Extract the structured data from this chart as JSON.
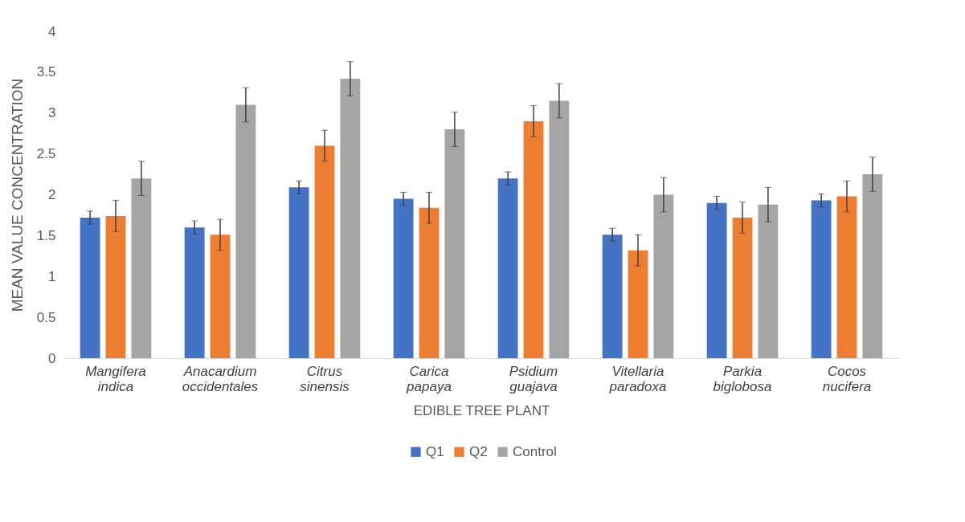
{
  "chart_data": {
    "type": "bar",
    "xlabel": "EDIBLE TREE PLANT",
    "ylabel": "MEAN VALUE CONCENTRATION",
    "categories": [
      "Mangifera indica",
      "Anacardium occidentales",
      "Citrus sinensis",
      "Carica papaya",
      "Psidium guajava",
      "Vitellaria paradoxa",
      "Parkia biglobosa",
      "Cocos nucifera"
    ],
    "series": [
      {
        "name": "Q1",
        "color": "#4472c4",
        "values": [
          1.72,
          1.6,
          2.09,
          1.95,
          2.2,
          1.51,
          1.9,
          1.93
        ],
        "errors": [
          0.08,
          0.08,
          0.08,
          0.08,
          0.08,
          0.08,
          0.08,
          0.08
        ]
      },
      {
        "name": "Q2",
        "color": "#ed7d31",
        "values": [
          1.74,
          1.51,
          2.6,
          1.84,
          2.9,
          1.32,
          1.72,
          1.98
        ],
        "errors": [
          0.19,
          0.19,
          0.19,
          0.19,
          0.19,
          0.19,
          0.19,
          0.19
        ]
      },
      {
        "name": "Control",
        "color": "#a5a5a5",
        "values": [
          2.2,
          3.1,
          3.42,
          2.8,
          3.15,
          2.0,
          1.88,
          2.25
        ],
        "errors": [
          0.21,
          0.21,
          0.21,
          0.21,
          0.21,
          0.21,
          0.21,
          0.21
        ]
      }
    ],
    "ylim": [
      0,
      4
    ],
    "yticks": [
      0,
      0.5,
      1,
      1.5,
      2,
      2.5,
      3,
      3.5,
      4
    ],
    "grid": false,
    "legend": "bottom"
  }
}
